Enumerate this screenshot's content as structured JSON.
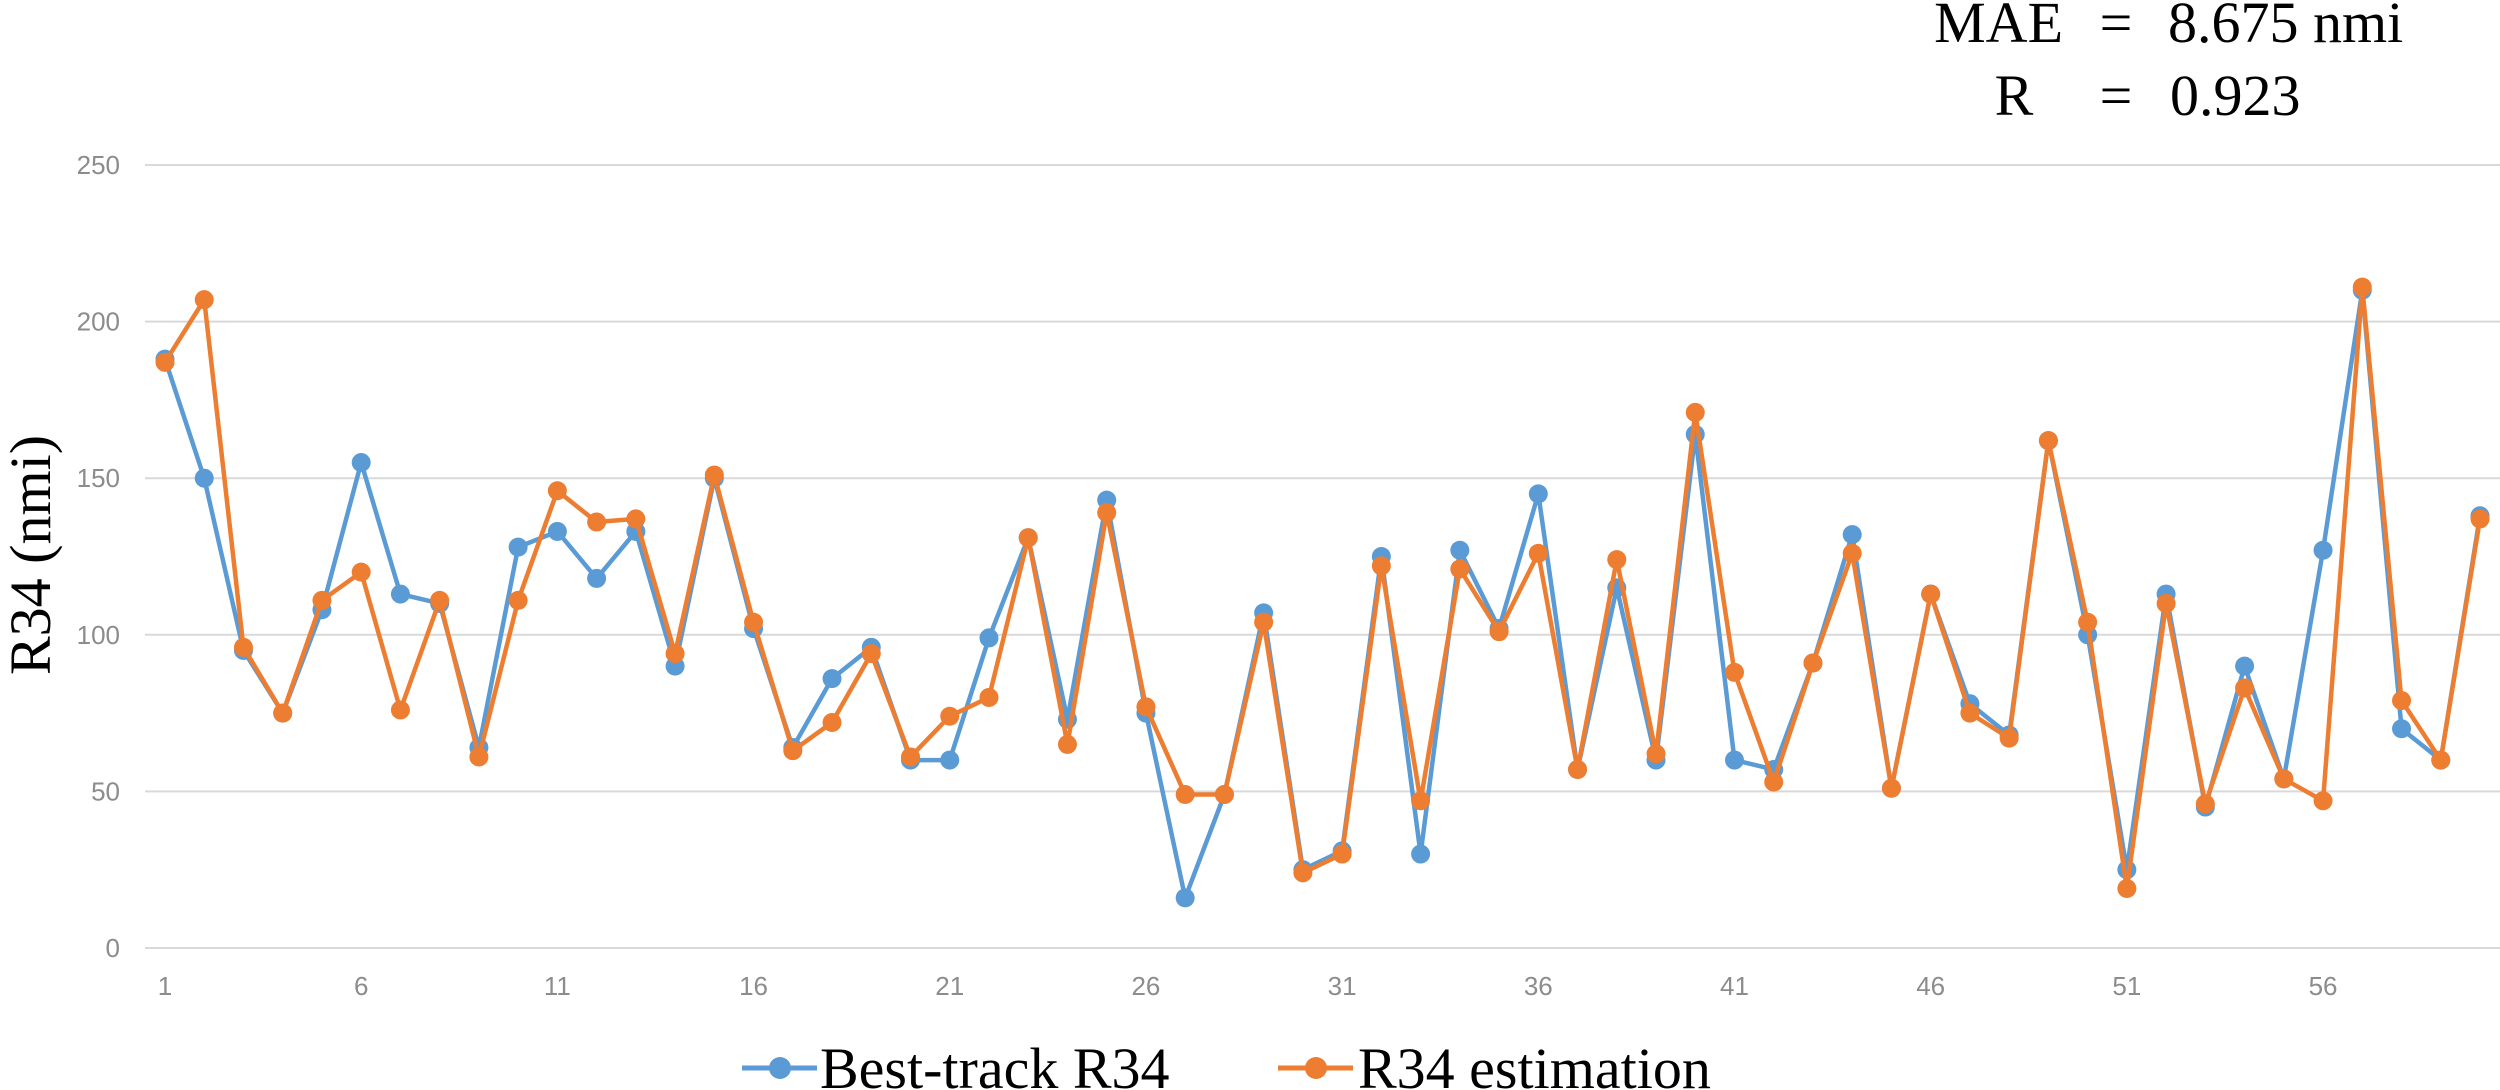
{
  "colors": {
    "best_track": "#5b9bd5",
    "estimation": "#ed7d31",
    "grid": "#d9d9d9",
    "tick_text": "#8c8c8c"
  },
  "stats": {
    "mae_label": "MAE",
    "mae_eq": "=",
    "mae_value": "8.675 nmi",
    "r_label": "R",
    "r_eq": "=",
    "r_value": "0.923"
  },
  "chart_data": {
    "type": "line",
    "title": "",
    "xlabel": "",
    "ylabel": "R34 (nmi)",
    "ylim": [
      0,
      250
    ],
    "yticks": [
      0,
      50,
      100,
      150,
      200,
      250
    ],
    "xlim": [
      1,
      60
    ],
    "xticks": [
      1,
      6,
      11,
      16,
      21,
      26,
      31,
      36,
      41,
      46,
      51,
      56
    ],
    "grid": "horizontal",
    "legend": "bottom",
    "x": [
      1,
      2,
      3,
      4,
      5,
      6,
      7,
      8,
      9,
      10,
      11,
      12,
      13,
      14,
      15,
      16,
      17,
      18,
      19,
      20,
      21,
      22,
      23,
      24,
      25,
      26,
      27,
      28,
      29,
      30,
      31,
      32,
      33,
      34,
      35,
      36,
      37,
      38,
      39,
      40,
      41,
      42,
      43,
      44,
      45,
      46,
      47,
      48,
      49,
      50,
      51,
      52,
      53,
      54,
      55,
      56,
      57,
      58,
      59,
      60
    ],
    "series": [
      {
        "name": "Best-track R34",
        "color": "#5b9bd5",
        "values": [
          188,
          150,
          95,
          75,
          108,
          155,
          113,
          110,
          64,
          128,
          133,
          118,
          133,
          90,
          150,
          102,
          64,
          86,
          96,
          60,
          60,
          99,
          131,
          73,
          143,
          75,
          16,
          49,
          107,
          25,
          31,
          125,
          30,
          127,
          102,
          145,
          57,
          115,
          60,
          164,
          60,
          57,
          91,
          132,
          51,
          113,
          78,
          68,
          162,
          100,
          25,
          113,
          45,
          90,
          54,
          127,
          210,
          70,
          60,
          138
        ]
      },
      {
        "name": "R34 estimation",
        "color": "#ed7d31",
        "values": [
          187,
          207,
          96,
          75,
          111,
          120,
          76,
          111,
          61,
          111,
          146,
          136,
          137,
          94,
          151,
          104,
          63,
          72,
          94,
          61,
          74,
          80,
          131,
          65,
          139,
          77,
          49,
          49,
          104,
          24,
          30,
          122,
          47,
          121,
          101,
          126,
          57,
          124,
          62,
          171,
          88,
          53,
          91,
          126,
          51,
          113,
          75,
          67,
          162,
          104,
          19,
          110,
          46,
          83,
          54,
          47,
          211,
          79,
          60,
          137
        ]
      }
    ]
  }
}
